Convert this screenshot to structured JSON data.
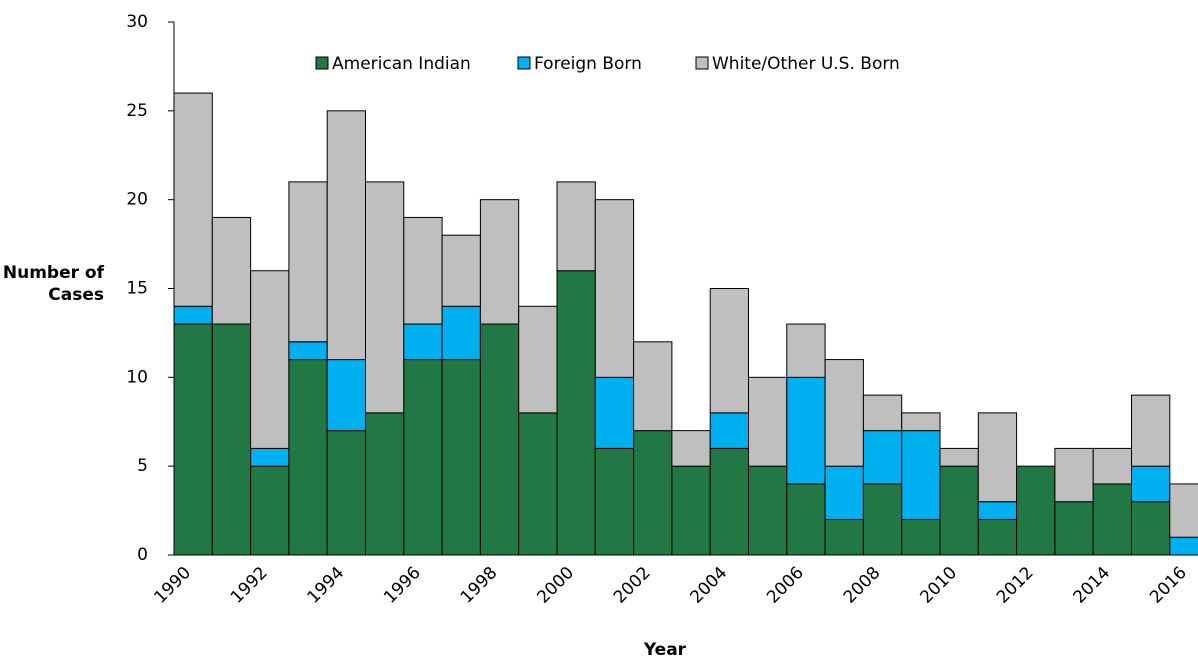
{
  "chart_data": {
    "type": "stacked_bar",
    "x_label": "Year",
    "y_label": "Number of Cases",
    "categories": [
      "1990",
      null,
      "1992",
      null,
      "1994",
      null,
      "1996",
      null,
      "1998",
      null,
      "2000",
      null,
      "2002",
      null,
      "2004",
      null,
      "2006",
      null,
      "2008",
      null,
      "2010",
      null,
      "2012",
      null,
      "2014",
      null,
      "2016"
    ],
    "series": [
      {
        "name": "American Indian",
        "color": "#217844",
        "values": [
          13,
          13,
          5,
          11,
          7,
          8,
          11,
          11,
          13,
          8,
          16,
          6,
          7,
          5,
          6,
          5,
          4,
          2,
          4,
          2,
          5,
          2,
          5,
          3,
          4,
          3,
          0
        ]
      },
      {
        "name": "Foreign Born",
        "color": "#00b0f0",
        "values": [
          1,
          0,
          1,
          1,
          4,
          0,
          2,
          3,
          0,
          0,
          0,
          4,
          0,
          0,
          2,
          0,
          6,
          3,
          3,
          5,
          0,
          1,
          0,
          0,
          0,
          2,
          1
        ]
      },
      {
        "name": "White/Other U.S. Born",
        "color": "#bfbfbf",
        "values": [
          12,
          6,
          10,
          9,
          14,
          13,
          6,
          4,
          7,
          6,
          5,
          10,
          5,
          2,
          7,
          5,
          3,
          6,
          2,
          1,
          1,
          5,
          0,
          3,
          2,
          4,
          3
        ]
      }
    ],
    "ylim": [
      0,
      30
    ],
    "yticks": [
      0,
      5,
      10,
      15,
      20,
      25,
      30
    ],
    "legend": "top"
  }
}
